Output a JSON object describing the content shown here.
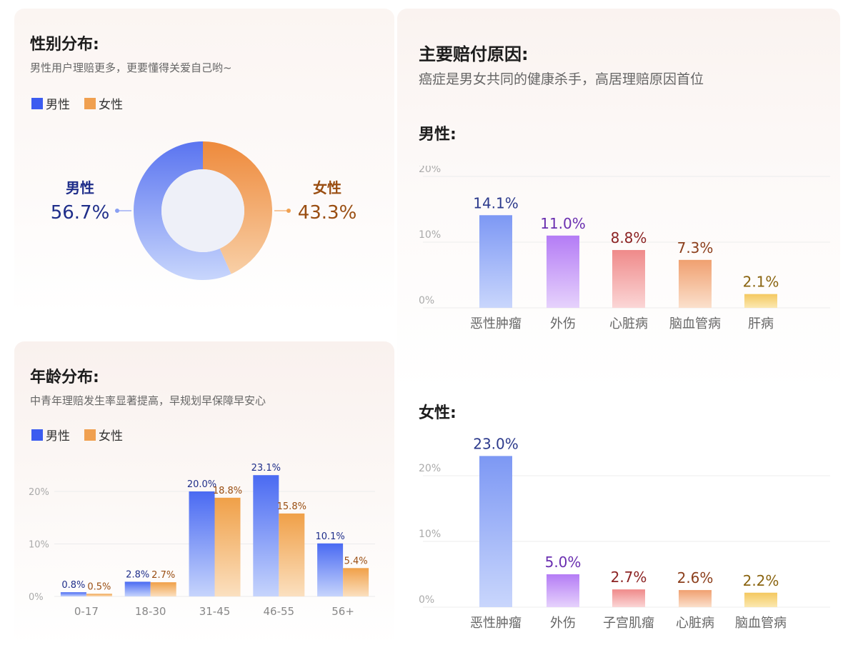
{
  "gender": {
    "title": "性别分布:",
    "subtitle": "男性用户理赔更多，更要懂得关爱自己哟~",
    "legend": [
      {
        "label": "男性",
        "color": "#3c5cf0"
      },
      {
        "label": "女性",
        "color": "#f0a050"
      }
    ],
    "male_label": "男性",
    "male_value": "56.7%",
    "female_label": "女性",
    "female_value": "43.3%"
  },
  "age": {
    "title": "年龄分布:",
    "subtitle": "中青年理赔发生率显著提高，早规划早保障早安心",
    "legend": [
      {
        "label": "男性",
        "color": "#3c5cf0"
      },
      {
        "label": "女性",
        "color": "#f0a050"
      }
    ]
  },
  "reason": {
    "title": "主要赔付原因:",
    "subtitle": "癌症是男女共同的健康杀手，高居理赔原因首位",
    "male_title": "男性:",
    "female_title": "女性:"
  },
  "chart_data": [
    {
      "type": "pie",
      "labels": [
        "男性",
        "女性"
      ],
      "values": [
        56.7,
        43.3
      ],
      "value_labels": [
        "56.7%",
        "43.3%"
      ],
      "colors": [
        "#5a7cf5",
        "#f09040"
      ]
    },
    {
      "type": "bar",
      "categories": [
        "0-17",
        "18-30",
        "31-45",
        "46-55",
        "56+"
      ],
      "series": [
        {
          "name": "男性",
          "values": [
            0.8,
            2.8,
            20.0,
            23.1,
            10.1
          ],
          "labels": [
            "0.8%",
            "2.8%",
            "20.0%",
            "23.1%",
            "10.1%"
          ]
        },
        {
          "name": "女性",
          "values": [
            0.5,
            2.7,
            18.8,
            15.8,
            5.4
          ],
          "labels": [
            "0.5%",
            "2.7%",
            "18.8%",
            "15.8%",
            "5.4%"
          ]
        }
      ],
      "yticks": [
        "0%",
        "10%",
        "20%"
      ],
      "ylim": [
        0,
        25
      ]
    },
    {
      "type": "bar",
      "categories": [
        "恶性肿瘤",
        "外伤",
        "心脏病",
        "脑血管病",
        "肝病"
      ],
      "values": [
        14.1,
        11.0,
        8.8,
        7.3,
        2.1
      ],
      "labels": [
        "14.1%",
        "11.0%",
        "8.8%",
        "7.3%",
        "2.1%"
      ],
      "yticks": [
        "0%",
        "10%",
        "20%"
      ],
      "ylim": [
        0,
        20
      ]
    },
    {
      "type": "bar",
      "categories": [
        "恶性肿瘤",
        "外伤",
        "子宫肌瘤",
        "心脏病",
        "脑血管病"
      ],
      "values": [
        23.0,
        5.0,
        2.7,
        2.6,
        2.2
      ],
      "labels": [
        "23.0%",
        "5.0%",
        "2.7%",
        "2.6%",
        "2.2%"
      ],
      "yticks": [
        "0%",
        "10%",
        "20%"
      ],
      "ylim": [
        0,
        25
      ]
    }
  ]
}
